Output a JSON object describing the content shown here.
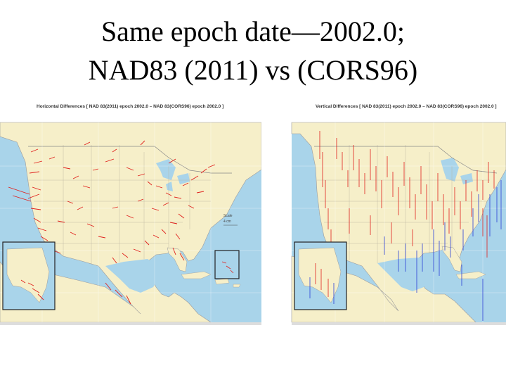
{
  "slide": {
    "title_line1": "Same epoch date—2002.0;",
    "title_line2": "NAD83 (2011) vs (CORS96)"
  },
  "left_map": {
    "title": "Horizontal Differences [ NAD 83(2011) epoch 2002.0 – NAD 83(CORS96) epoch 2002.0 ]",
    "scale_label": "Scale",
    "scale_value": "4 cm",
    "vector_color": "#e0201c"
  },
  "right_map": {
    "title": "Vertical Differences [ NAD 83(2011) epoch 2002.0 – NAD 83(CORS96) epoch 2002.0 ]",
    "up_color": "#e0201c",
    "down_color": "#2b3fd6"
  },
  "colors": {
    "ocean": "#a9d4ea",
    "land": "#f6efc9",
    "border": "#7a7a7a"
  }
}
